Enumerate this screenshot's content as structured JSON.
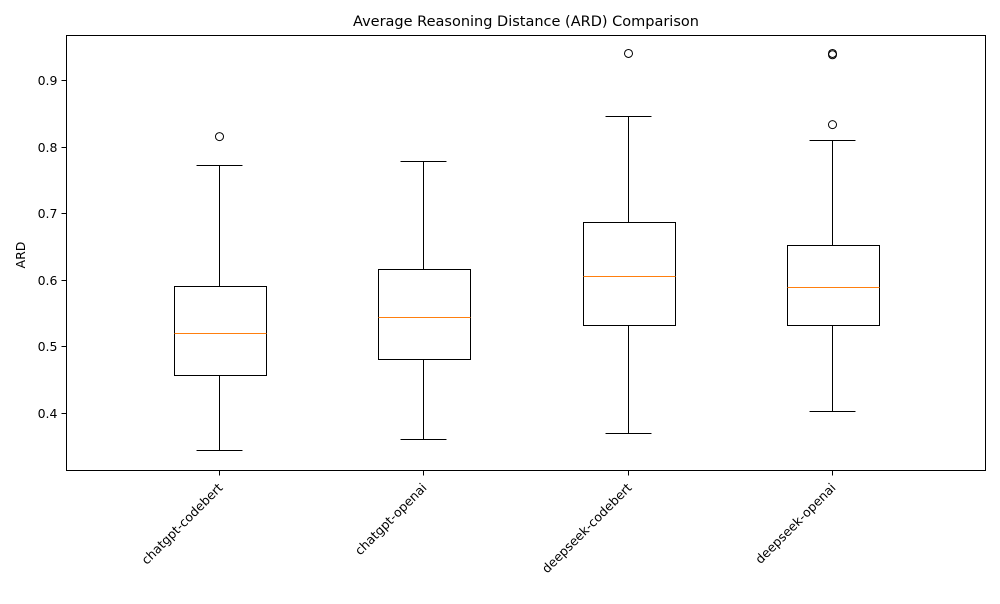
{
  "chart_data": {
    "type": "box",
    "title": "Average Reasoning Distance (ARD) Comparison",
    "xlabel": "",
    "ylabel": "ARD",
    "ylim": [
      0.313,
      0.967
    ],
    "yticks": [
      0.4,
      0.5,
      0.6,
      0.7,
      0.8,
      0.9
    ],
    "ytick_labels": [
      "0.4",
      "0.5",
      "0.6",
      "0.7",
      "0.8",
      "0.9"
    ],
    "categories": [
      "chatgpt-codebert",
      "chatgpt-openai",
      "deepseek-codebert",
      "deepseek-openai"
    ],
    "boxes": [
      {
        "whisker_low": 0.344,
        "q1": 0.457,
        "median": 0.52,
        "q3": 0.59,
        "whisker_high": 0.773,
        "outliers": [
          0.815
        ]
      },
      {
        "whisker_low": 0.361,
        "q1": 0.481,
        "median": 0.544,
        "q3": 0.616,
        "whisker_high": 0.779,
        "outliers": []
      },
      {
        "whisker_low": 0.37,
        "q1": 0.532,
        "median": 0.606,
        "q3": 0.687,
        "whisker_high": 0.846,
        "outliers": [
          0.94
        ]
      },
      {
        "whisker_low": 0.403,
        "q1": 0.532,
        "median": 0.589,
        "q3": 0.652,
        "whisker_high": 0.81,
        "outliers": [
          0.833,
          0.938,
          0.94
        ]
      }
    ],
    "grid": false,
    "box_color": "#000000",
    "median_color": "#ff7f0e"
  }
}
